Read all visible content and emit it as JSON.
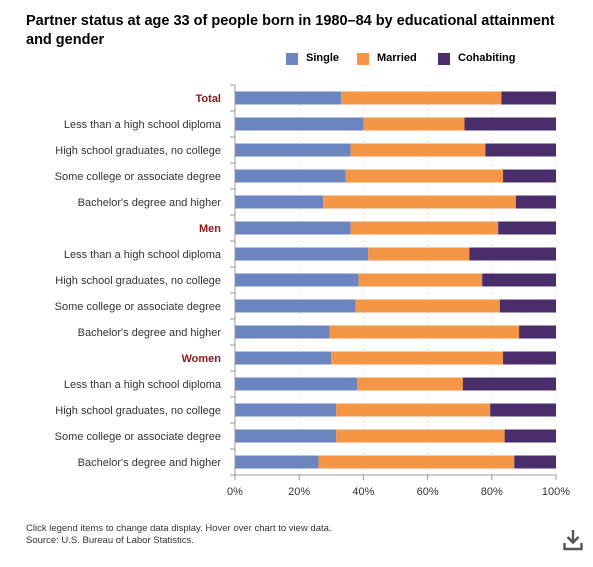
{
  "title": "Partner status at age 33 of people born in 1980–84 by educational attainment and gender",
  "footnote": {
    "line1": "Click legend items to change data display. Hover over chart to view data.",
    "line2": "Source: U.S. Bureau of Labor Statistics."
  },
  "colors": {
    "single": "#6a85c0",
    "married": "#f59646",
    "cohabiting": "#4a2d6b",
    "group_label": "#8b1a1a"
  },
  "download_icon": "download-icon",
  "chart_data": {
    "type": "bar",
    "orientation": "horizontal",
    "stacked": true,
    "categories": [
      "Total",
      "Less than a high school diploma",
      "High school graduates, no college",
      "Some college or associate degree",
      "Bachelor's degree and higher",
      "Men",
      "Less than a high school diploma",
      "High school graduates, no college",
      "Some college or associate degree",
      "Bachelor's degree and higher",
      "Women",
      "Less than a high school diploma",
      "High school graduates, no college",
      "Some college or associate degree",
      "Bachelor's degree and higher"
    ],
    "group_headers": [
      "Total",
      "Men",
      "Women"
    ],
    "series": [
      {
        "name": "Single",
        "color": "#6a85c0",
        "values": [
          33,
          40,
          36,
          34.5,
          27.5,
          36,
          41.5,
          38.5,
          37.5,
          29.5,
          30,
          38,
          31.5,
          31.5,
          26
        ]
      },
      {
        "name": "Married",
        "color": "#f59646",
        "values": [
          50,
          31.5,
          42,
          49,
          60,
          46,
          31.5,
          38.5,
          45,
          59,
          53.5,
          33,
          48,
          52.5,
          61
        ]
      },
      {
        "name": "Cohabiting",
        "color": "#4a2d6b",
        "values": [
          17,
          28.5,
          22,
          16.5,
          12.5,
          18,
          27,
          23,
          17.5,
          11.5,
          16.5,
          29,
          20.5,
          16,
          13
        ]
      }
    ],
    "x_ticks": [
      "0%",
      "20%",
      "40%",
      "60%",
      "80%",
      "100%"
    ],
    "xlim": [
      0,
      100
    ],
    "xlabel": "",
    "ylabel": "",
    "grid": true,
    "legend": "top-center"
  }
}
